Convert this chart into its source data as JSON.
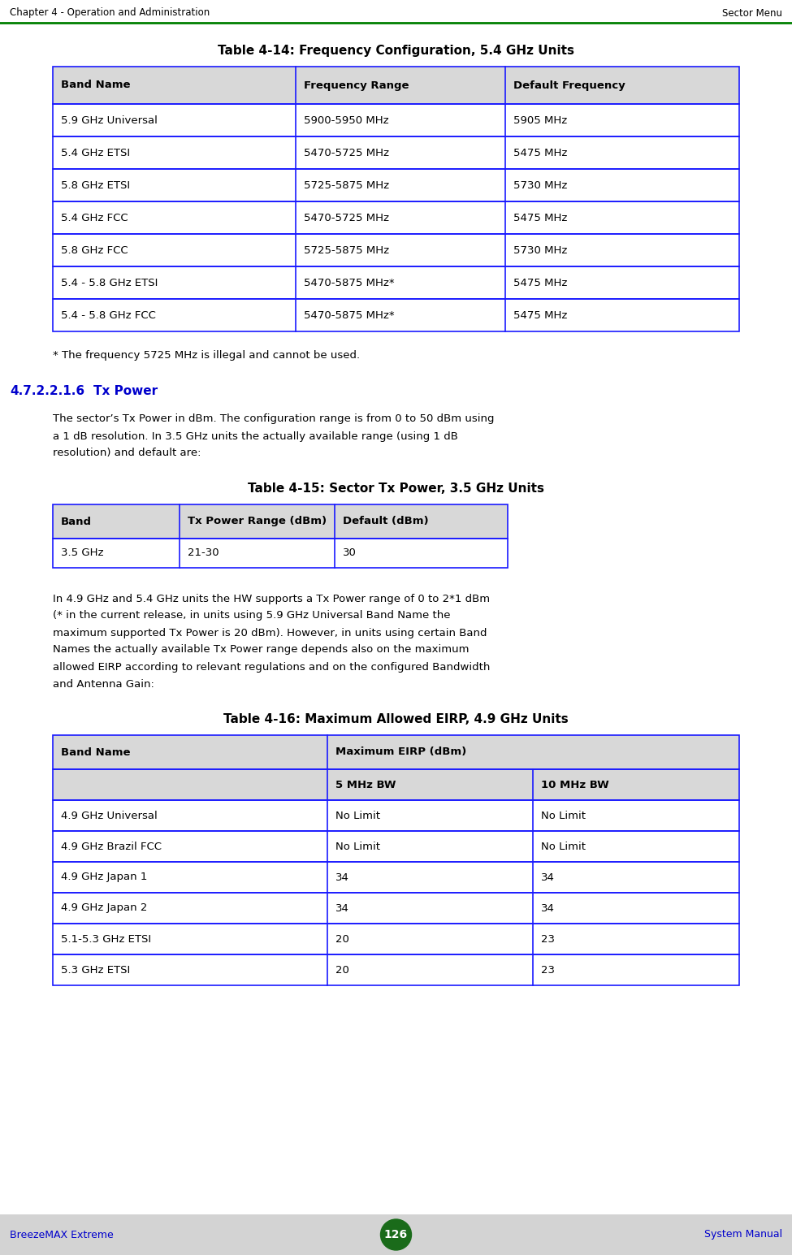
{
  "header_left": "Chapter 4 - Operation and Administration",
  "header_right": "Sector Menu",
  "footer_left": "BreezeMAX Extreme",
  "footer_center": "126",
  "footer_right": "System Manual",
  "header_line_color": "#008000",
  "footer_bg_color": "#d3d3d3",
  "page_bg": "#ffffff",
  "text_color": "#000000",
  "blue_color": "#0000cc",
  "table_border_color": "#1a1aff",
  "table_header_bg": "#d8d8d8",
  "table_body_bg": "#ffffff",
  "section_number_color": "#0000cc",
  "section_title_color": "#0000cc",
  "table14_title": "Table 4-14: Frequency Configuration, 5.4 GHz Units",
  "table14_headers": [
    "Band Name",
    "Frequency Range",
    "Default Frequency"
  ],
  "table14_rows": [
    [
      "5.9 GHz Universal",
      "5900-5950 MHz",
      "5905 MHz"
    ],
    [
      "5.4 GHz ETSI",
      "5470-5725 MHz",
      "5475 MHz"
    ],
    [
      "5.8 GHz ETSI",
      "5725-5875 MHz",
      "5730 MHz"
    ],
    [
      "5.4 GHz FCC",
      "5470-5725 MHz",
      "5475 MHz"
    ],
    [
      "5.8 GHz FCC",
      "5725-5875 MHz",
      "5730 MHz"
    ],
    [
      "5.4 - 5.8 GHz ETSI",
      "5470-5875 MHz*",
      "5475 MHz"
    ],
    [
      "5.4 - 5.8 GHz FCC",
      "5470-5875 MHz*",
      "5475 MHz"
    ]
  ],
  "footnote14": "* The frequency 5725 MHz is illegal and cannot be used.",
  "section_num": "4.7.2.2.1.6",
  "section_title": "Tx Power",
  "section_text1_lines": [
    "The sector’s Tx Power in dBm. The configuration range is from 0 to 50 dBm using",
    "a 1 dB resolution. In 3.5 GHz units the actually available range (using 1 dB",
    "resolution) and default are:"
  ],
  "table15_title": "Table 4-15: Sector Tx Power, 3.5 GHz Units",
  "table15_headers": [
    "Band",
    "Tx Power Range (dBm)",
    "Default (dBm)"
  ],
  "table15_rows": [
    [
      "3.5 GHz",
      "21-30",
      "30"
    ]
  ],
  "section_text2_lines": [
    "In 4.9 GHz and 5.4 GHz units the HW supports a Tx Power range of 0 to 2*1 dBm",
    "(* in the current release, in units using 5.9 GHz Universal Band Name the",
    "maximum supported Tx Power is 20 dBm). However, in units using certain Band",
    "Names the actually available Tx Power range depends also on the maximum",
    "allowed EIRP according to relevant regulations and on the configured Bandwidth",
    "and Antenna Gain:"
  ],
  "table16_title": "Table 4-16: Maximum Allowed EIRP, 4.9 GHz Units",
  "table16_col1_header": "Band Name",
  "table16_col23_header": "Maximum EIRP (dBm)",
  "table16_col2_header": "5 MHz BW",
  "table16_col3_header": "10 MHz BW",
  "table16_rows": [
    [
      "4.9 GHz Universal",
      "No Limit",
      "No Limit"
    ],
    [
      "4.9 GHz Brazil FCC",
      "No Limit",
      "No Limit"
    ],
    [
      "4.9 GHz Japan 1",
      "34",
      "34"
    ],
    [
      "4.9 GHz Japan 2",
      "34",
      "34"
    ],
    [
      "5.1-5.3 GHz ETSI",
      "20",
      "23"
    ],
    [
      "5.3 GHz ETSI",
      "20",
      "23"
    ]
  ]
}
